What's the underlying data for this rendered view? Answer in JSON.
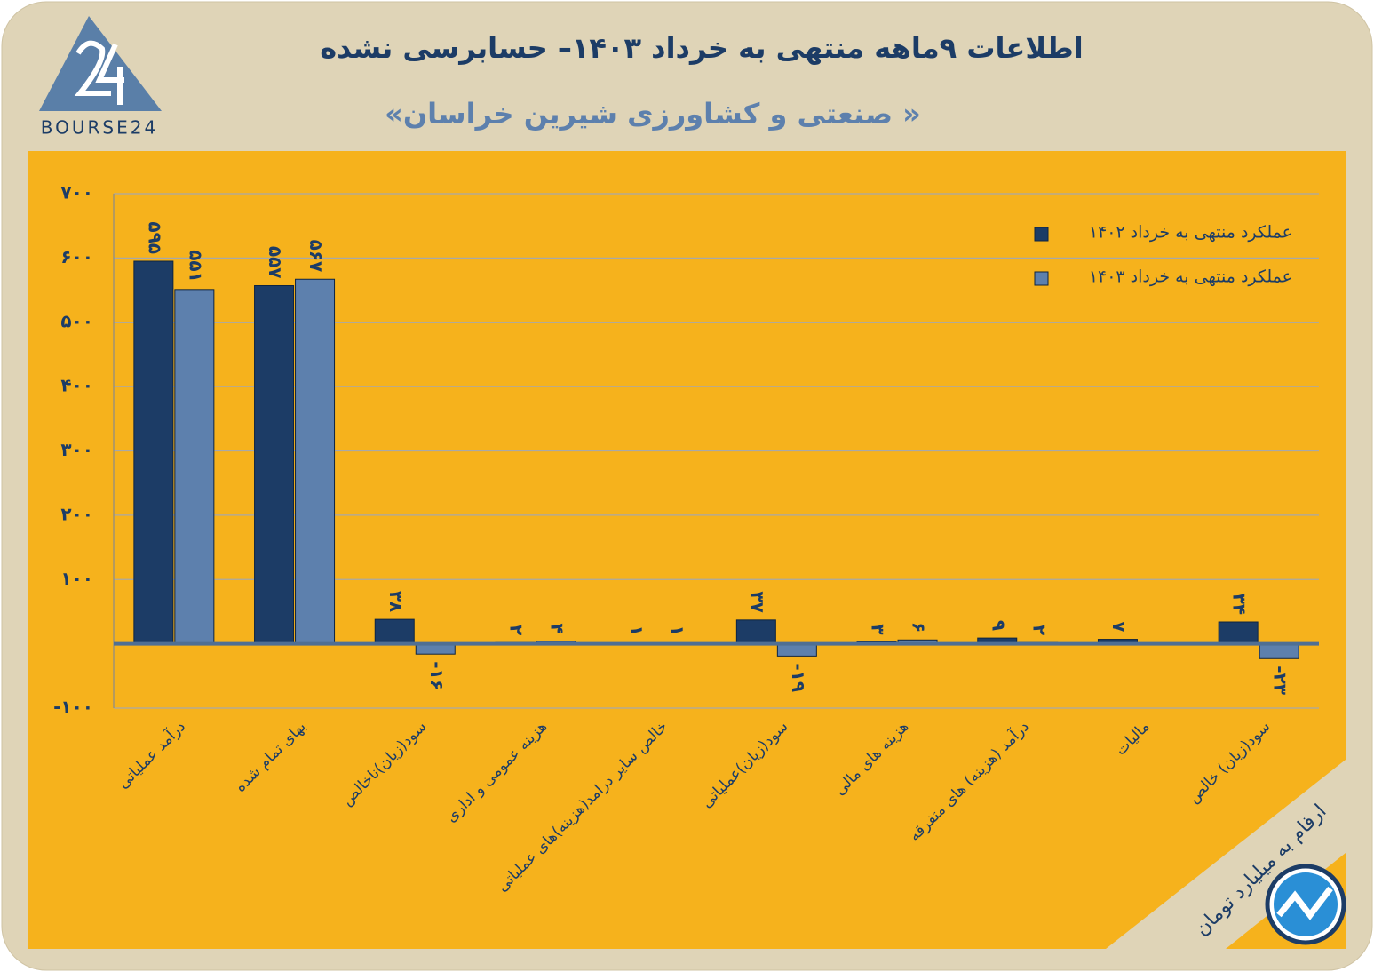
{
  "logo": "BOURSE24",
  "chart_data": {
    "type": "bar",
    "title": "اطلاعات ۹ماهه منتهی به خرداد ۱۴۰۳– حسابرسی نشده",
    "subtitle": "«صنعتی و کشاورزی شیرین خراسان »",
    "note": "ارقام به میلیارد تومان",
    "categories": [
      "درآمد عملیاتی",
      "بهای تمام شده",
      "سود(زیان)ناخالص",
      "هزینه عمومی و اداری",
      "خالص سایر درامد(هزینه)های عملیاتی",
      "سود(زیان)عملیاتی",
      "هزینه های مالی",
      "درآمد (هزینه) های متفرقه",
      "مالیات",
      "سود(زیان) خالص"
    ],
    "series": [
      {
        "name": "عملکرد منتهی به خرداد ۱۴۰۲",
        "color": "#1c3c66",
        "values": [
          595,
          557,
          38,
          2,
          1,
          37,
          3,
          9,
          7,
          34
        ],
        "value_labels": [
          "۵۹۵",
          "۵۵۷",
          "۳۸",
          "۲",
          "۱",
          "۳۷",
          "۳",
          "۹",
          "۷",
          "۳۴"
        ]
      },
      {
        "name": "عملکرد منتهی به خرداد ۱۴۰۳",
        "color": "#5d80ad",
        "values": [
          551,
          567,
          -16,
          4,
          1,
          -19,
          6,
          2,
          null,
          -23
        ],
        "value_labels": [
          "۵۵۱",
          "۵۶۷",
          "-۱۶",
          "۴",
          "۱",
          "-۱۹",
          "۶",
          "۲",
          null,
          "-۲۳"
        ]
      }
    ],
    "ylim": [
      -100,
      700
    ],
    "yticks": [
      {
        "value": -100,
        "label": "-۱۰۰"
      },
      {
        "value": 0,
        "label": ""
      },
      {
        "value": 100,
        "label": "۱۰۰"
      },
      {
        "value": 200,
        "label": "۲۰۰"
      },
      {
        "value": 300,
        "label": "۳۰۰"
      },
      {
        "value": 400,
        "label": "۴۰۰"
      },
      {
        "value": 500,
        "label": "۵۰۰"
      },
      {
        "value": 600,
        "label": "۶۰۰"
      },
      {
        "value": 700,
        "label": "۷۰۰"
      }
    ],
    "grid": true,
    "legend": "top-right"
  }
}
